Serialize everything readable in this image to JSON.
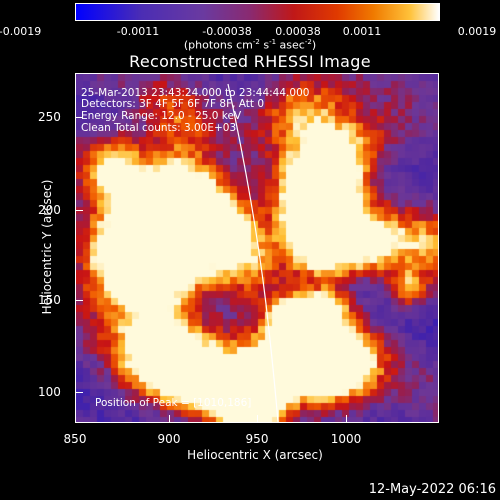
{
  "colorbar": {
    "ticks": [
      "-0.0019",
      "-0.0011",
      "-0.00038",
      "0.00038",
      "0.0011",
      "0.0019"
    ],
    "units_prefix": "(photons cm",
    "units_exp1": "-2",
    "units_mid": " s",
    "units_exp2": "-1",
    "units_mid2": " asec",
    "units_exp3": "-2",
    "units_suffix": ")"
  },
  "title": "Reconstructed RHESSI Image",
  "annotations": {
    "time_range": "25-Mar-2013 23:43:24.000 to 23:44:44.000",
    "detectors": "Detectors: 3F 4F 5F 6F 7F 8F, Att 0",
    "energy": "Energy Range: 12.0 - 25.0 keV",
    "clean": "Clean    Total counts: 3.00E+03",
    "peak": "Position of Peak = [1010,186]"
  },
  "axes": {
    "xlabel": "Heliocentric X (arcsec)",
    "ylabel": "Heliocentric Y (arcsec)",
    "xticks": [
      "850",
      "900",
      "950",
      "1000"
    ],
    "yticks": [
      "250",
      "200",
      "150",
      "100"
    ]
  },
  "footer": "12-May-2022 06:16"
}
